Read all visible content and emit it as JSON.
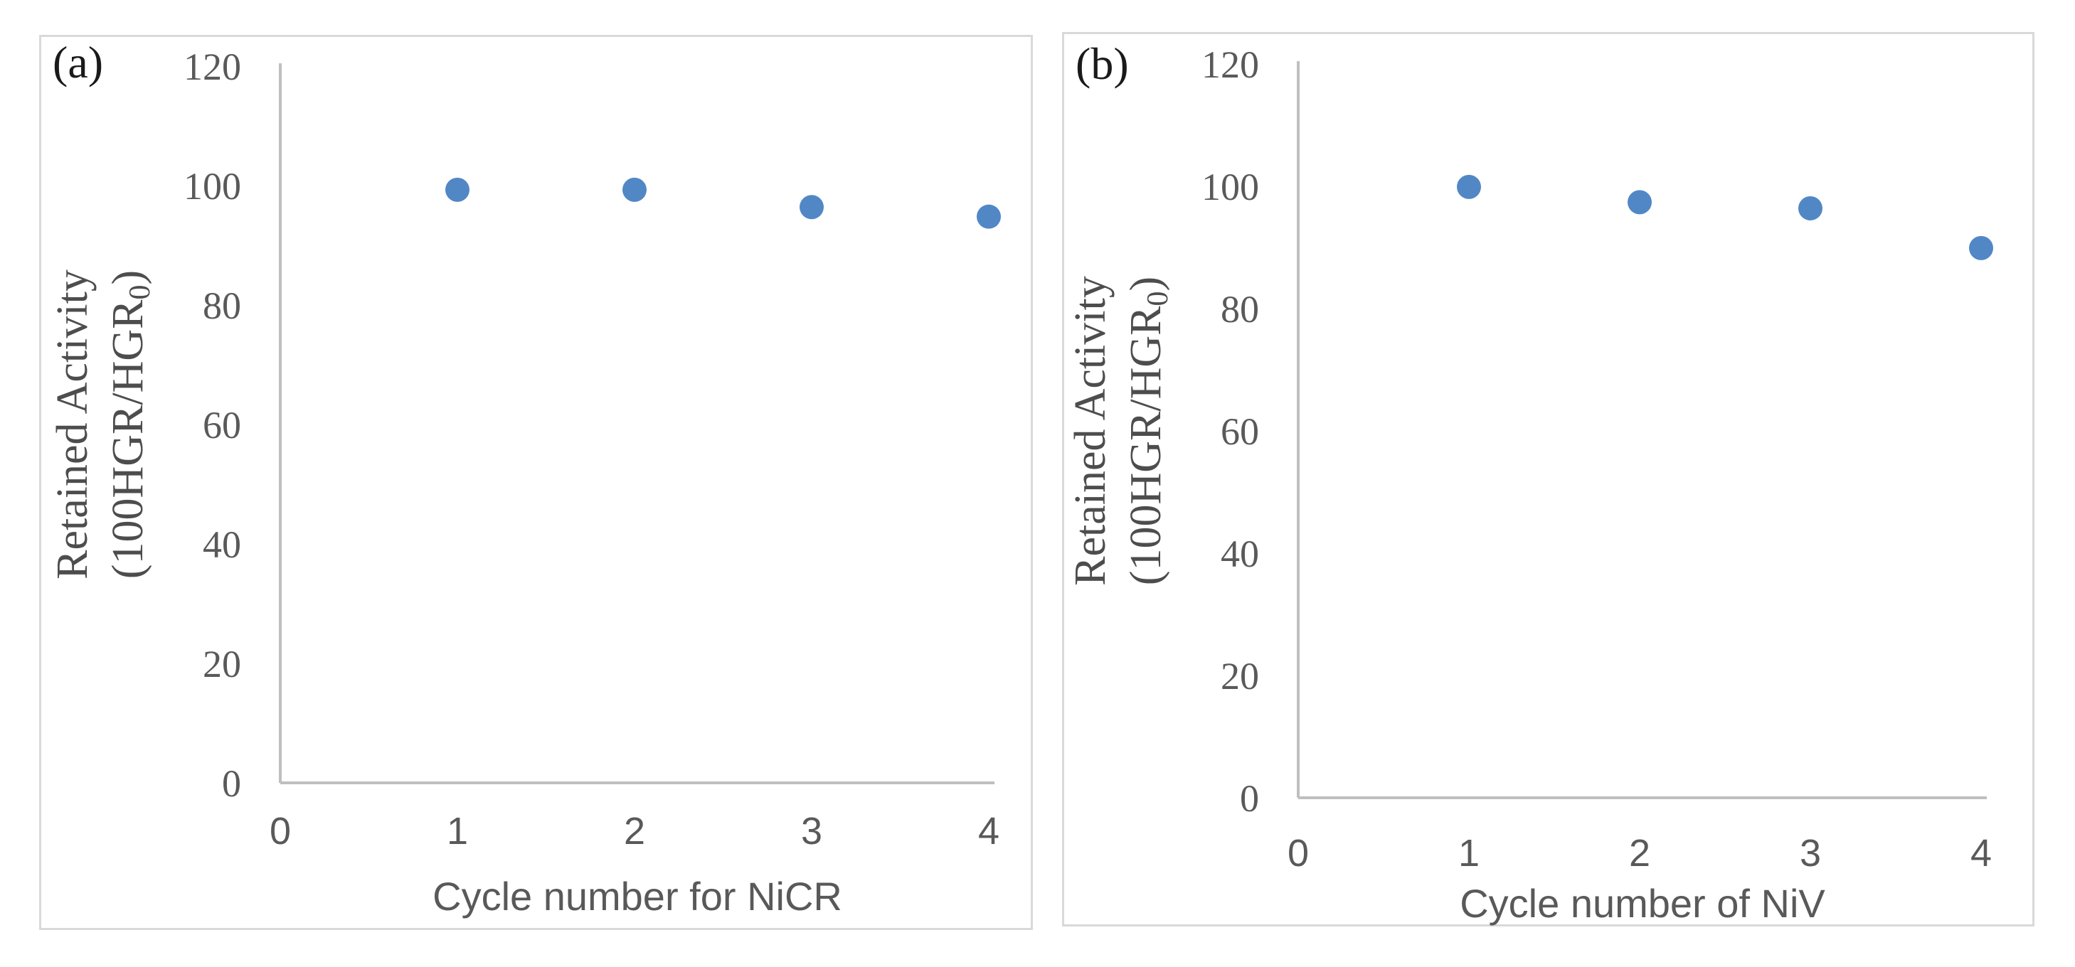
{
  "figure": {
    "background": "#ffffff",
    "description": "Two-panel scatter figure of retained catalytic activity versus reuse cycle number"
  },
  "panels": [
    {
      "tag": "(a)",
      "xlabel": "Cycle number for NiCR"
    },
    {
      "tag": "(b)",
      "xlabel": "Cycle number of NiV"
    }
  ],
  "ylabel": {
    "line1": "Retained Activity",
    "line2_main": "(100HGR/HGR",
    "line2_sub": "0",
    "line2_end": ")"
  },
  "colors": {
    "marker": "#5287c6",
    "axis": "#bfbfbf",
    "tick_text": "#595959",
    "panel_border": "#d9d9d9",
    "panel_label": "#1a1a1a"
  },
  "chart_data": [
    {
      "type": "scatter",
      "title": "(a)",
      "xlabel": "Cycle number for NiCR",
      "ylabel": "Retained Activity (100HGR/HGR0)",
      "x": [
        1,
        2,
        3,
        4
      ],
      "y": [
        99.3,
        99.3,
        96.4,
        94.8
      ],
      "xlim": [
        0,
        4
      ],
      "ylim": [
        0,
        120
      ],
      "xticks": [
        0,
        1,
        2,
        3,
        4
      ],
      "yticks": [
        0,
        20,
        40,
        60,
        80,
        100,
        120
      ],
      "grid": false,
      "legend": null,
      "marker": "circle",
      "marker_color": "#5287c6"
    },
    {
      "type": "scatter",
      "title": "(b)",
      "xlabel": "Cycle number of NiV",
      "ylabel": "Retained Activity (100HGR/HGR0)",
      "x": [
        1,
        2,
        3,
        4
      ],
      "y": [
        99.9,
        97.4,
        96.4,
        89.9
      ],
      "xlim": [
        0,
        4
      ],
      "ylim": [
        0,
        120
      ],
      "xticks": [
        0,
        1,
        2,
        3,
        4
      ],
      "yticks": [
        0,
        20,
        40,
        60,
        80,
        100,
        120
      ],
      "grid": false,
      "legend": null,
      "marker": "circle",
      "marker_color": "#5287c6"
    }
  ]
}
